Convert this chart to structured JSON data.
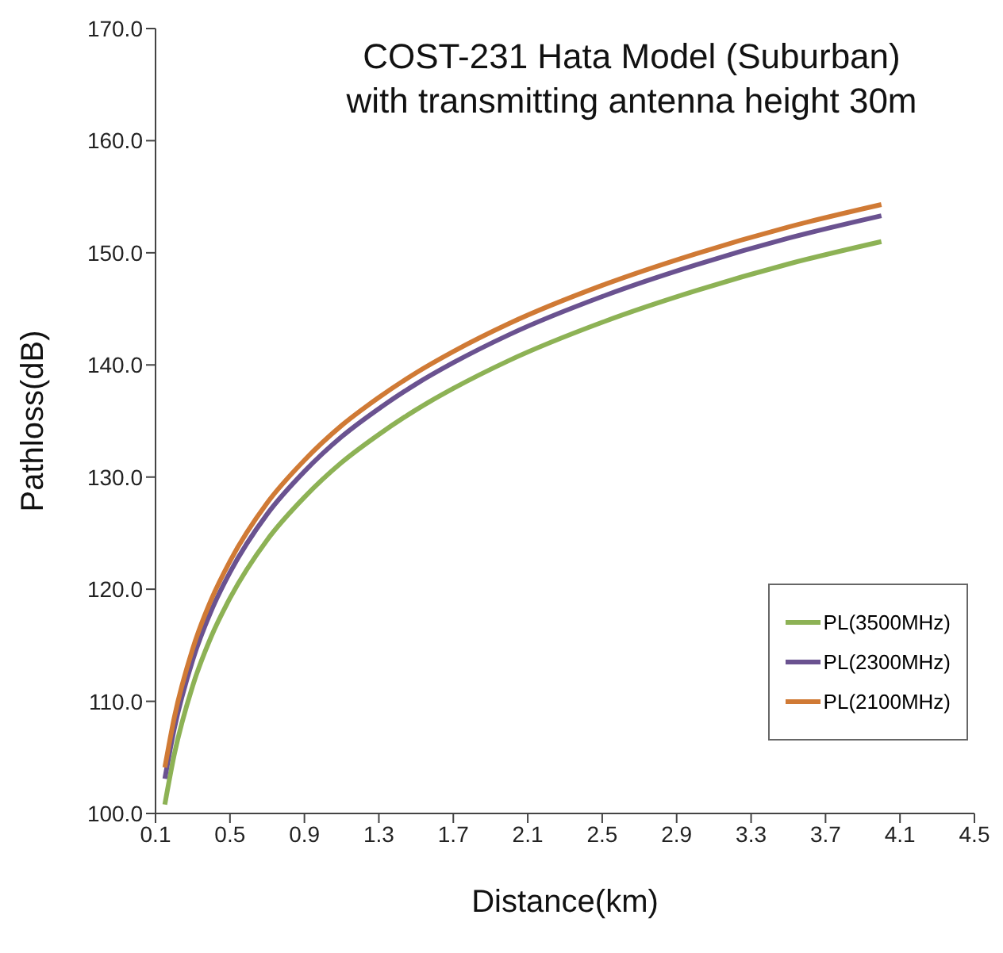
{
  "chart_data": {
    "type": "line",
    "title": "COST-231 Hata Model (Suburban) with transmitting antenna height 30m",
    "xlabel": "Distance(km)",
    "ylabel": "Pathloss(dB)",
    "x": [
      0.15,
      0.2,
      0.3,
      0.4,
      0.5,
      0.7,
      0.9,
      1.1,
      1.3,
      1.5,
      1.7,
      2.0,
      2.5,
      3.0,
      3.5,
      4.0
    ],
    "series": [
      {
        "name": "PL(3500MHz)",
        "color": "#8db255",
        "values": [
          100.8,
          105.2,
          111.4,
          115.8,
          119.2,
          124.4,
          128.2,
          131.3,
          133.8,
          136.0,
          137.9,
          140.4,
          143.8,
          146.6,
          149.0,
          151.0
        ]
      },
      {
        "name": "PL(2300MHz)",
        "color": "#6a5290",
        "values": [
          103.1,
          107.5,
          113.7,
          118.1,
          121.5,
          126.7,
          130.5,
          133.6,
          136.1,
          138.3,
          140.2,
          142.7,
          146.1,
          148.9,
          151.3,
          153.3
        ]
      },
      {
        "name": "PL(2100MHz)",
        "color": "#d07a35",
        "values": [
          104.1,
          108.5,
          114.7,
          119.1,
          122.5,
          127.7,
          131.5,
          134.6,
          137.1,
          139.3,
          141.2,
          143.7,
          147.1,
          149.9,
          152.3,
          154.3
        ]
      }
    ],
    "xlim": [
      0.1,
      4.5
    ],
    "xticks": [
      0.1,
      0.5,
      0.9,
      1.3,
      1.7,
      2.1,
      2.5,
      2.9,
      3.3,
      3.7,
      4.1,
      4.5
    ],
    "ylim": [
      100,
      170
    ],
    "yticks": [
      {
        "value": 100,
        "label": "100.0"
      },
      {
        "value": 110,
        "label": "110.0"
      },
      {
        "value": 120,
        "label": "120.0"
      },
      {
        "value": 130,
        "label": "130.0"
      },
      {
        "value": 140,
        "label": "140.0"
      },
      {
        "value": 150,
        "label": "150.0"
      },
      {
        "value": 160,
        "label": "160.0"
      },
      {
        "value": 170,
        "label": "170.0"
      }
    ],
    "grid": false,
    "legend": "bottom right",
    "marker": "none",
    "line_style": "solid"
  }
}
